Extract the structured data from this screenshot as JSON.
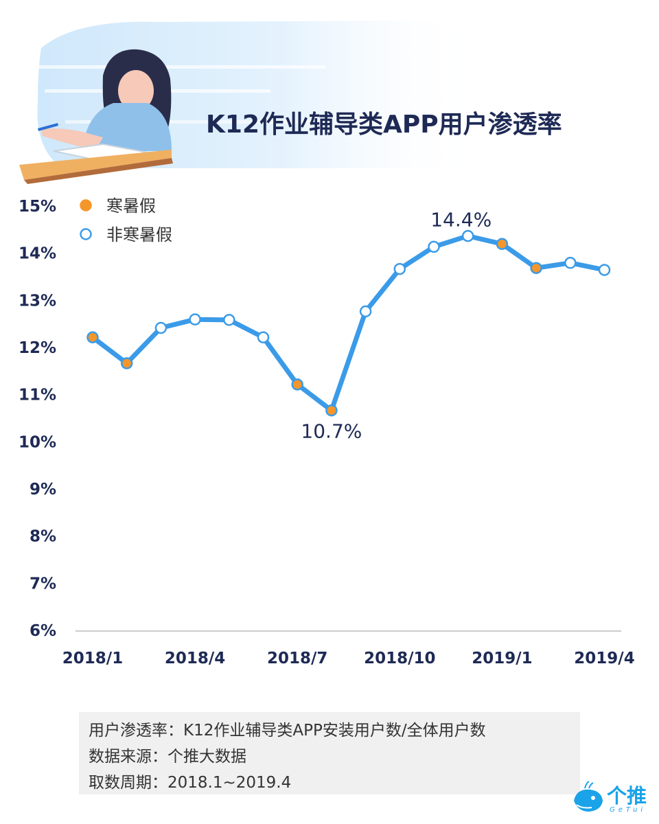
{
  "title": "K12作业辅导类APP用户渗透率",
  "chart_data": {
    "type": "line",
    "x": [
      "2018/1",
      "2018/2",
      "2018/3",
      "2018/4",
      "2018/5",
      "2018/6",
      "2018/7",
      "2018/8",
      "2018/9",
      "2018/10",
      "2018/11",
      "2018/12",
      "2019/1",
      "2019/2",
      "2019/3",
      "2019/4"
    ],
    "values": [
      12.2,
      11.65,
      12.4,
      12.58,
      12.57,
      12.2,
      11.2,
      10.65,
      12.75,
      13.65,
      14.12,
      14.35,
      14.18,
      13.67,
      13.78,
      13.63
    ],
    "vacation": [
      true,
      true,
      false,
      false,
      false,
      false,
      true,
      true,
      false,
      false,
      false,
      false,
      true,
      true,
      false,
      false
    ],
    "ylim": [
      6,
      15
    ],
    "yticks": [
      "6%",
      "7%",
      "8%",
      "9%",
      "10%",
      "11%",
      "12%",
      "13%",
      "14%",
      "15%"
    ],
    "xtick_labels": [
      "2018/1",
      "2018/4",
      "2018/7",
      "2018/10",
      "2019/1",
      "2019/4"
    ],
    "xtick_indices": [
      0,
      3,
      6,
      9,
      12,
      15
    ],
    "annotations": [
      {
        "index": 7,
        "text": "10.7%"
      },
      {
        "index": 11,
        "text": "14.4%"
      }
    ],
    "legend": [
      {
        "label": "寒暑假",
        "style": "filled"
      },
      {
        "label": "非寒暑假",
        "style": "hollow"
      }
    ],
    "legend_position": "top-left",
    "colors": {
      "line": "#3b9be8",
      "vacation": "#f5962a",
      "hollow_fill": "#ffffff",
      "axis_text": "#1e2a55",
      "baseline": "#cccccc"
    }
  },
  "notes": [
    "用户渗透率：K12作业辅导类APP安装用户数/全体用户数",
    "数据来源：个推大数据",
    "取数周期：2018.1~2019.4"
  ],
  "logo": {
    "cn": "个推",
    "en": "GeTui"
  }
}
